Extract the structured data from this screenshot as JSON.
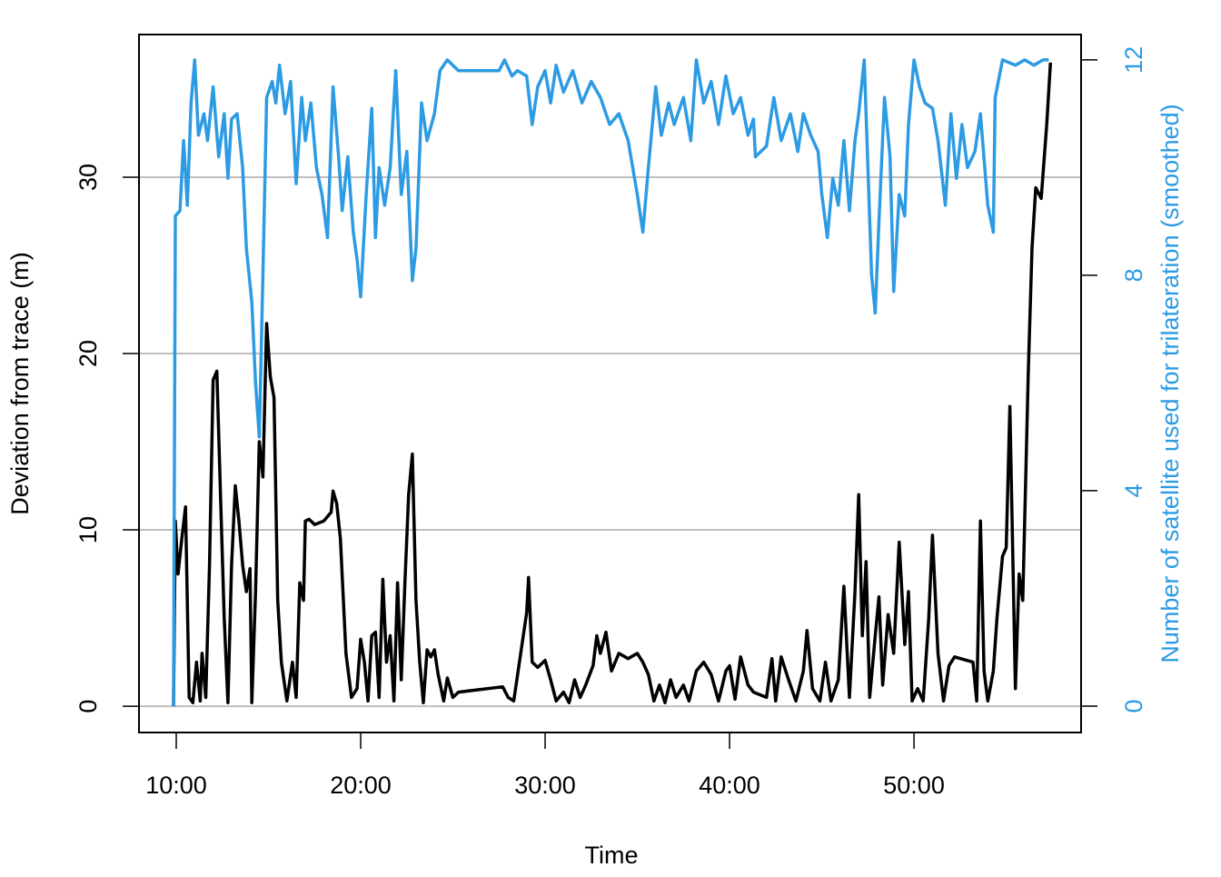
{
  "chart_data": {
    "type": "line",
    "xlabel": "Time",
    "ylabel": "Deviation from trace (m)",
    "y2label": "Number of satellite used for trilateration (smoothed)",
    "y2color": "#2d9be3",
    "grid": true,
    "xlim": [
      7.98,
      59.06
    ],
    "ylim": [
      -1.49,
      38.09
    ],
    "y2lim": [
      -0.49,
      12.47
    ],
    "xticks": [
      {
        "value": 10,
        "label": "10:00"
      },
      {
        "value": 20,
        "label": "20:00"
      },
      {
        "value": 30,
        "label": "30:00"
      },
      {
        "value": 40,
        "label": "40:00"
      },
      {
        "value": 50,
        "label": "50:00"
      }
    ],
    "yticks": [
      0,
      10,
      20,
      30
    ],
    "y2ticks": [
      0,
      4,
      8,
      12
    ],
    "series": [
      {
        "color": "#000000",
        "axis": "y",
        "x": [
          9.85,
          9.95,
          10.1,
          10.3,
          10.5,
          10.7,
          10.9,
          11.1,
          11.3,
          11.4,
          11.6,
          11.8,
          12.0,
          12.2,
          12.4,
          12.6,
          12.8,
          13.0,
          13.2,
          13.4,
          13.6,
          13.8,
          14.0,
          14.1,
          14.3,
          14.5,
          14.7,
          14.9,
          15.1,
          15.3,
          15.5,
          15.7,
          16.0,
          16.3,
          16.5,
          16.7,
          16.9,
          17.0,
          17.2,
          17.5,
          18.0,
          18.4,
          18.5,
          18.7,
          18.9,
          19.2,
          19.5,
          19.8,
          20.0,
          20.2,
          20.4,
          20.6,
          20.8,
          21.0,
          21.2,
          21.4,
          21.6,
          21.8,
          22.0,
          22.2,
          22.4,
          22.6,
          22.8,
          23.0,
          23.2,
          23.4,
          23.6,
          23.8,
          24.0,
          24.2,
          24.5,
          24.7,
          25.0,
          25.3,
          27.7,
          28.0,
          28.3,
          29.0,
          29.1,
          29.3,
          29.6,
          30.0,
          30.3,
          30.6,
          31.0,
          31.3,
          31.6,
          31.9,
          32.2,
          32.6,
          32.8,
          33.0,
          33.3,
          33.6,
          34.0,
          34.5,
          35.0,
          35.3,
          35.6,
          35.9,
          36.2,
          36.5,
          36.8,
          37.1,
          37.5,
          37.8,
          38.2,
          38.6,
          39.0,
          39.4,
          39.8,
          40.0,
          40.3,
          40.6,
          41.0,
          41.3,
          42.0,
          42.3,
          42.5,
          42.8,
          43.2,
          43.6,
          44.0,
          44.2,
          44.5,
          44.9,
          45.2,
          45.5,
          45.9,
          46.2,
          46.5,
          46.8,
          47.0,
          47.2,
          47.4,
          47.6,
          47.9,
          48.1,
          48.3,
          48.6,
          48.9,
          49.2,
          49.5,
          49.7,
          49.9,
          50.2,
          50.5,
          50.8,
          51.0,
          51.3,
          51.6,
          51.9,
          52.2,
          53.2,
          53.4,
          53.6,
          53.8,
          54.0,
          54.3,
          54.5,
          54.8,
          55.0,
          55.2,
          55.5,
          55.7,
          55.9,
          56.2,
          56.4,
          56.6,
          56.9,
          57.2,
          57.4
        ],
        "values": [
          0,
          10.5,
          7.5,
          9.5,
          11.3,
          0.5,
          0.2,
          2.5,
          0.3,
          3,
          0.5,
          8,
          18.5,
          19,
          12,
          5,
          0.2,
          8,
          12.5,
          10.5,
          8,
          6.5,
          7.8,
          0.2,
          6.5,
          15,
          13,
          21.7,
          18.7,
          17.5,
          6,
          2.5,
          0.3,
          2.5,
          0.5,
          7,
          6,
          10.5,
          10.6,
          10.3,
          10.5,
          11,
          12.2,
          11.5,
          9.5,
          3,
          0.5,
          1,
          3.8,
          2.5,
          0.3,
          4,
          4.2,
          0.5,
          7.2,
          2.5,
          4,
          0.3,
          7,
          1.5,
          7,
          12,
          14.3,
          6,
          2.5,
          0.2,
          3.2,
          2.8,
          3.2,
          1.8,
          0.3,
          1.6,
          0.5,
          0.8,
          1.1,
          0.5,
          0.3,
          5.3,
          7.3,
          2.5,
          2.2,
          2.6,
          1.5,
          0.3,
          0.8,
          0.2,
          1.5,
          0.5,
          1.2,
          2.3,
          4,
          3,
          4.2,
          2,
          3,
          2.7,
          3,
          2.5,
          1.8,
          0.3,
          1.2,
          0.2,
          1.5,
          0.5,
          1.2,
          0.3,
          2,
          2.5,
          1.8,
          0.3,
          2,
          2.3,
          0.4,
          2.8,
          1.2,
          0.8,
          0.5,
          2.7,
          0.3,
          2.8,
          1.5,
          0.3,
          2,
          4.3,
          1,
          0.3,
          2.5,
          0.3,
          1.5,
          6.8,
          0.5,
          6.5,
          12,
          4,
          8.2,
          0.5,
          4,
          6.2,
          1.2,
          5.2,
          3,
          9.3,
          3.5,
          6.5,
          0.3,
          1,
          0.3,
          5,
          9.7,
          3,
          0.3,
          2.3,
          2.8,
          2.5,
          0.3,
          10.5,
          2,
          0.3,
          2,
          5,
          8.5,
          9,
          17,
          1,
          7.5,
          6,
          19,
          26,
          29.4,
          28.8,
          33,
          36.5
        ]
      },
      {
        "color": "#2d9be3",
        "axis": "y2",
        "x": [
          9.85,
          9.95,
          10.2,
          10.4,
          10.6,
          10.8,
          11.0,
          11.2,
          11.5,
          11.7,
          12.0,
          12.3,
          12.6,
          12.8,
          13.0,
          13.3,
          13.6,
          13.8,
          14.1,
          14.3,
          14.5,
          14.7,
          14.9,
          15.2,
          15.4,
          15.6,
          15.9,
          16.2,
          16.5,
          16.8,
          17.0,
          17.3,
          17.6,
          17.9,
          18.2,
          18.5,
          18.8,
          19.0,
          19.3,
          19.6,
          19.8,
          20.0,
          20.3,
          20.6,
          20.8,
          21.0,
          21.3,
          21.6,
          21.9,
          22.2,
          22.5,
          22.8,
          23.0,
          23.3,
          23.6,
          24.0,
          24.3,
          24.7,
          25.3,
          27.5,
          27.8,
          28.2,
          28.5,
          29.0,
          29.3,
          29.6,
          30.0,
          30.3,
          30.6,
          31.0,
          31.5,
          32.0,
          32.5,
          33.0,
          33.5,
          34.0,
          34.5,
          35.0,
          35.3,
          35.6,
          36.0,
          36.3,
          36.7,
          37.0,
          37.5,
          37.9,
          38.2,
          38.6,
          39.0,
          39.4,
          39.8,
          40.2,
          40.6,
          41.0,
          41.3,
          41.4,
          42.0,
          42.4,
          42.8,
          43.3,
          43.7,
          44.0,
          44.4,
          44.8,
          45.0,
          45.3,
          45.6,
          45.9,
          46.2,
          46.5,
          46.8,
          47.0,
          47.3,
          47.7,
          47.9,
          48.1,
          48.4,
          48.7,
          48.9,
          49.2,
          49.5,
          49.7,
          50.0,
          50.3,
          50.6,
          51.0,
          51.3,
          51.7,
          52.0,
          52.3,
          52.6,
          52.9,
          53.3,
          53.6,
          54.0,
          54.3,
          54.4,
          54.8,
          55.5,
          56.0,
          56.5,
          57.0,
          57.3
        ],
        "values": [
          0,
          9.1,
          9.2,
          10.5,
          9.3,
          11.2,
          12,
          10.6,
          11,
          10.5,
          11.5,
          10.2,
          11,
          9.8,
          10.9,
          11,
          10,
          8.5,
          7.5,
          6,
          5,
          8,
          11.3,
          11.6,
          11.2,
          11.9,
          11,
          11.6,
          9.7,
          11.3,
          10.5,
          11.2,
          10,
          9.5,
          8.7,
          11.5,
          10.2,
          9.2,
          10.2,
          8.8,
          8.3,
          7.6,
          9.5,
          11.1,
          8.7,
          10,
          9.3,
          10,
          11.8,
          9.5,
          10.3,
          7.9,
          8.5,
          11.2,
          10.5,
          11,
          11.8,
          12,
          11.8,
          11.8,
          12,
          11.7,
          11.8,
          11.7,
          10.8,
          11.5,
          11.8,
          11.2,
          11.9,
          11.4,
          11.8,
          11.2,
          11.6,
          11.3,
          10.8,
          11,
          10.5,
          9.5,
          8.8,
          10,
          11.5,
          10.6,
          11.2,
          10.8,
          11.3,
          10.5,
          12,
          11.2,
          11.6,
          10.8,
          11.7,
          11,
          11.3,
          10.6,
          10.9,
          10.2,
          10.4,
          11.3,
          10.5,
          11,
          10.3,
          11,
          10.6,
          10.3,
          9.5,
          8.7,
          9.8,
          9.3,
          10.5,
          9.2,
          10.5,
          11,
          12,
          8,
          7.3,
          9,
          11.3,
          10.2,
          7.7,
          9.5,
          9.1,
          10.8,
          12,
          11.5,
          11.2,
          11.1,
          10.5,
          9.3,
          11,
          9.8,
          10.8,
          10,
          10.3,
          11,
          9.3,
          8.8,
          11.3,
          12,
          11.9,
          12,
          11.9,
          12,
          12
        ]
      }
    ]
  }
}
